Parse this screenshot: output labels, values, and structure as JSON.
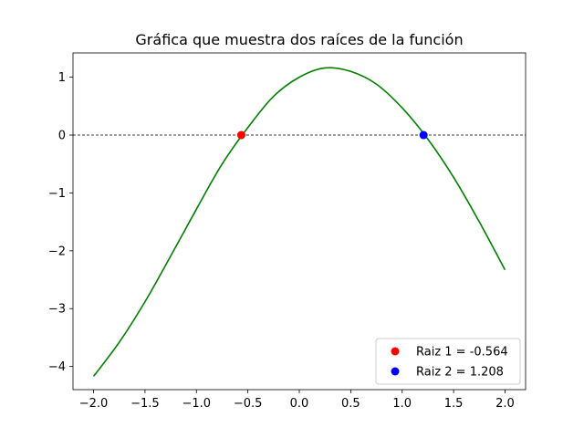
{
  "chart_data": {
    "type": "line",
    "title": "Gráfica que muestra dos raíces de la función",
    "xlabel": "",
    "ylabel": "",
    "xlim": [
      -2.2,
      2.2
    ],
    "ylim": [
      -4.4,
      1.42
    ],
    "xticks": [
      -2.0,
      -1.5,
      -1.0,
      -0.5,
      0.0,
      0.5,
      1.0,
      1.5,
      2.0
    ],
    "xtick_labels": [
      "−2.0",
      "−1.5",
      "−1.0",
      "−0.5",
      "0.0",
      "0.5",
      "1.0",
      "1.5",
      "2.0"
    ],
    "yticks": [
      -4,
      -3,
      -2,
      -1,
      0,
      1
    ],
    "ytick_labels": [
      "−4",
      "−3",
      "−2",
      "−1",
      "0",
      "1"
    ],
    "grid": false,
    "series": [
      {
        "color": "#008000",
        "x": [
          -2.0,
          -1.75,
          -1.5,
          -1.25,
          -1.0,
          -0.75,
          -0.5,
          -0.25,
          0.0,
          0.25,
          0.5,
          0.75,
          1.0,
          1.25,
          1.5,
          1.75,
          2.0
        ],
        "y": [
          -4.17,
          -3.58,
          -2.88,
          -2.09,
          -1.28,
          -0.5,
          0.13,
          0.67,
          1.0,
          1.16,
          1.1,
          0.88,
          0.47,
          -0.07,
          -0.73,
          -1.5,
          -2.33
        ]
      }
    ],
    "reference_line": {
      "y": 0,
      "style": "dashed",
      "color": "#000000"
    },
    "roots": [
      {
        "name": "Raiz 1 = -0.564",
        "x": -0.564,
        "y": 0,
        "color": "#ff0000"
      },
      {
        "name": "Raiz 2 = 1.208",
        "x": 1.208,
        "y": 0,
        "color": "#0000ff"
      }
    ],
    "legend_position": "bottom-right"
  }
}
